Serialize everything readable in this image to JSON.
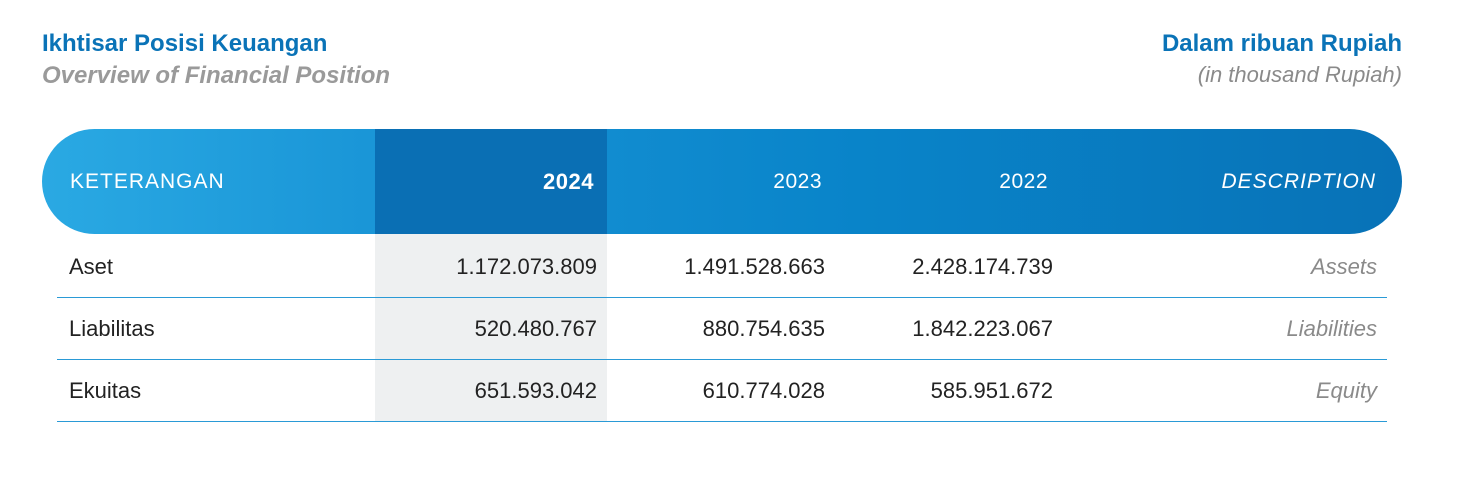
{
  "header": {
    "title": "Ikhtisar Posisi Keuangan",
    "subtitle": "Overview of Financial Position",
    "unit": "Dalam ribuan Rupiah",
    "unit_sub": "(in thousand Rupiah)"
  },
  "table": {
    "columns": [
      "KETERANGAN",
      "2024",
      "2023",
      "2022",
      "DESCRIPTION"
    ],
    "rows": [
      {
        "label": "Aset",
        "v2024": "1.172.073.809",
        "v2023": "1.491.528.663",
        "v2022": "2.428.174.739",
        "desc": "Assets"
      },
      {
        "label": "Liabilitas",
        "v2024": "520.480.767",
        "v2023": "880.754.635",
        "v2022": "1.842.223.067",
        "desc": "Liabilities"
      },
      {
        "label": "Ekuitas",
        "v2024": "651.593.042",
        "v2023": "610.774.028",
        "v2022": "585.951.672",
        "desc": "Equity"
      }
    ]
  },
  "colors": {
    "title_blue": "#0a73b7",
    "header_gradient_start": "#2aa9e3",
    "header_gradient_end": "#0872b7",
    "highlight_column": "#0a6fb4",
    "highlight_cell_bg": "#eef0f1",
    "divider": "#2a9ad6"
  }
}
